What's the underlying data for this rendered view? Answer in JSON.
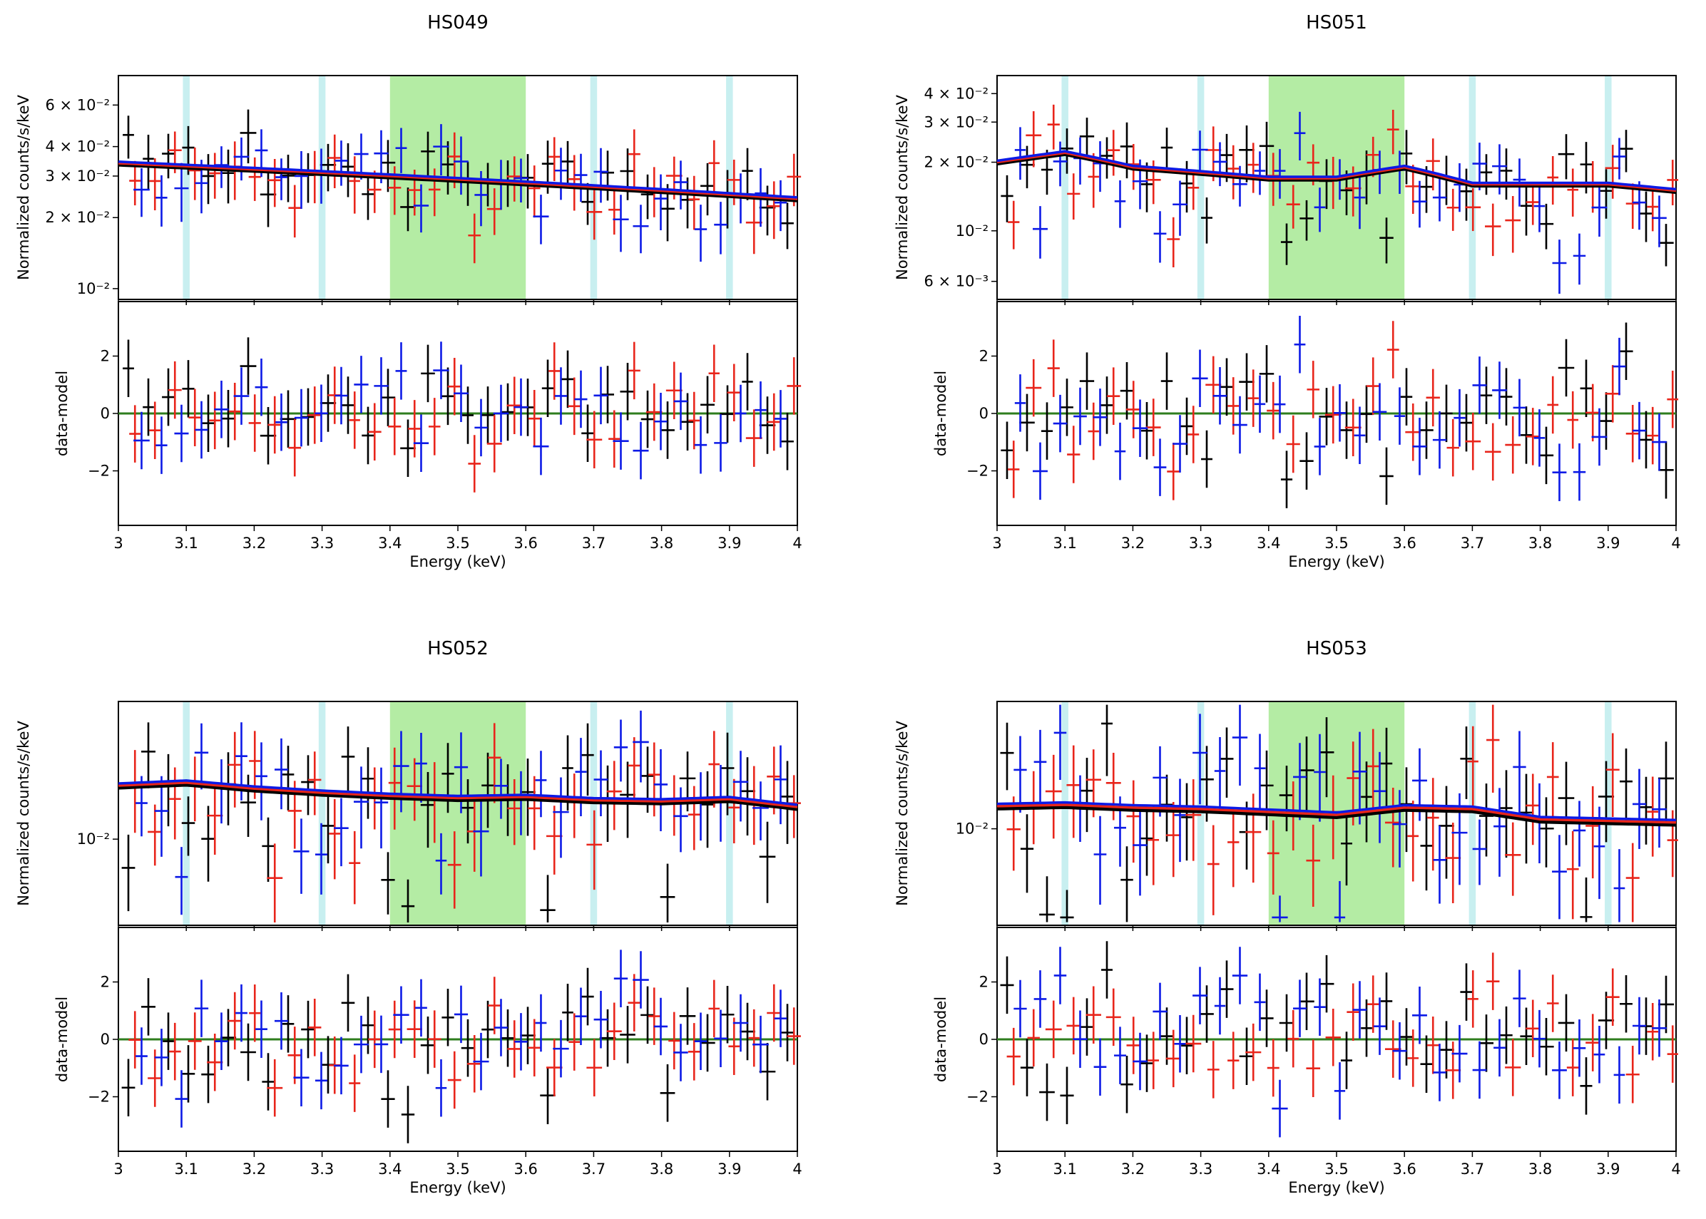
{
  "chart_data": [
    {
      "type": "scatter",
      "panel": "HS049",
      "title": "HS049",
      "xlabel": "Energy (keV)",
      "ylabel_top": "Normalized counts/s/keV",
      "ylabel_bottom": "data-model",
      "xlim": [
        3,
        4
      ],
      "xticks": [
        "3",
        "3.1",
        "3.2",
        "3.3",
        "3.4",
        "3.5",
        "3.6",
        "3.7",
        "3.8",
        "3.9",
        "4"
      ],
      "yscale_top": "log",
      "ylim_top": [
        0.009,
        0.08
      ],
      "yticks_top": [
        {
          "value": 0.01,
          "label": "10⁻²"
        },
        {
          "value": 0.02,
          "label": "2 × 10⁻²"
        },
        {
          "value": 0.03,
          "label": "3 × 10⁻²"
        },
        {
          "value": 0.04,
          "label": "4 × 10⁻²"
        },
        {
          "value": 0.06,
          "label": "6 × 10⁻²"
        }
      ],
      "ylim_bottom": [
        -3.9,
        3.9
      ],
      "yticks_bottom": [
        "-2",
        "0",
        "2"
      ],
      "shaded_bands": [
        {
          "x0": 3.095,
          "x1": 3.105,
          "color": "#c8eff0"
        },
        {
          "x0": 3.295,
          "x1": 3.305,
          "color": "#c8eff0"
        },
        {
          "x0": 3.695,
          "x1": 3.705,
          "color": "#c8eff0"
        },
        {
          "x0": 3.895,
          "x1": 3.905,
          "color": "#c8eff0"
        },
        {
          "x0": 3.4,
          "x1": 3.6,
          "color": "#b4eca4"
        }
      ],
      "model": {
        "x": [
          3.0,
          3.1,
          3.2,
          3.3,
          3.4,
          3.5,
          3.6,
          3.7,
          3.8,
          3.9,
          4.0
        ],
        "y": [
          0.034,
          0.033,
          0.032,
          0.031,
          0.03,
          0.029,
          0.028,
          0.027,
          0.026,
          0.025,
          0.024
        ]
      },
      "series": [
        {
          "name": "black",
          "color": "#000000",
          "amp": 1.1,
          "seed": 11
        },
        {
          "name": "red",
          "color": "#e8251b",
          "amp": 1.1,
          "seed": 12
        },
        {
          "name": "blue",
          "color": "#0c1ae6",
          "amp": 1.1,
          "seed": 13
        }
      ]
    },
    {
      "type": "scatter",
      "panel": "HS051",
      "title": "HS051",
      "xlabel": "Energy (keV)",
      "ylabel_top": "Normalized counts/s/keV",
      "ylabel_bottom": "data-model",
      "xlim": [
        3,
        4
      ],
      "xticks": [
        "3",
        "3.1",
        "3.2",
        "3.3",
        "3.4",
        "3.5",
        "3.6",
        "3.7",
        "3.8",
        "3.9",
        "4"
      ],
      "yscale_top": "log",
      "ylim_top": [
        0.005,
        0.048
      ],
      "yticks_top": [
        {
          "value": 0.006,
          "label": "6 × 10⁻³"
        },
        {
          "value": 0.01,
          "label": "10⁻²"
        },
        {
          "value": 0.02,
          "label": "2 × 10⁻²"
        },
        {
          "value": 0.03,
          "label": "3 × 10⁻²"
        },
        {
          "value": 0.04,
          "label": "4 × 10⁻²"
        }
      ],
      "ylim_bottom": [
        -3.9,
        3.9
      ],
      "yticks_bottom": [
        "-2",
        "0",
        "2"
      ],
      "shaded_bands": [
        {
          "x0": 3.095,
          "x1": 3.105,
          "color": "#c8eff0"
        },
        {
          "x0": 3.295,
          "x1": 3.305,
          "color": "#c8eff0"
        },
        {
          "x0": 3.695,
          "x1": 3.705,
          "color": "#c8eff0"
        },
        {
          "x0": 3.895,
          "x1": 3.905,
          "color": "#c8eff0"
        },
        {
          "x0": 3.4,
          "x1": 3.6,
          "color": "#b4eca4"
        }
      ],
      "model": {
        "x": [
          3.0,
          3.1,
          3.2,
          3.3,
          3.4,
          3.5,
          3.6,
          3.7,
          3.8,
          3.9,
          4.0
        ],
        "y": [
          0.02,
          0.022,
          0.019,
          0.018,
          0.017,
          0.017,
          0.019,
          0.016,
          0.016,
          0.016,
          0.015
        ]
      },
      "series": [
        {
          "name": "black",
          "color": "#000000",
          "amp": 1.4,
          "seed": 21
        },
        {
          "name": "red",
          "color": "#e8251b",
          "amp": 1.4,
          "seed": 22
        },
        {
          "name": "blue",
          "color": "#0c1ae6",
          "amp": 1.4,
          "seed": 23
        }
      ]
    },
    {
      "type": "scatter",
      "panel": "HS052",
      "title": "HS052",
      "xlabel": "Energy (keV)",
      "ylabel_top": "Normalized counts/s/keV",
      "ylabel_bottom": "data-model",
      "xlim": [
        3,
        4
      ],
      "xticks": [
        "3",
        "3.1",
        "3.2",
        "3.3",
        "3.4",
        "3.5",
        "3.6",
        "3.7",
        "3.8",
        "3.9",
        "4"
      ],
      "yscale_top": "log",
      "ylim_top": [
        0.0055,
        0.026
      ],
      "yticks_top": [
        {
          "value": 0.01,
          "label": "10⁻²"
        }
      ],
      "ylim_bottom": [
        -3.9,
        3.9
      ],
      "yticks_bottom": [
        "-2",
        "0",
        "2"
      ],
      "shaded_bands": [
        {
          "x0": 3.095,
          "x1": 3.105,
          "color": "#c8eff0"
        },
        {
          "x0": 3.295,
          "x1": 3.305,
          "color": "#c8eff0"
        },
        {
          "x0": 3.695,
          "x1": 3.705,
          "color": "#c8eff0"
        },
        {
          "x0": 3.895,
          "x1": 3.905,
          "color": "#c8eff0"
        },
        {
          "x0": 3.4,
          "x1": 3.6,
          "color": "#b4eca4"
        }
      ],
      "model": {
        "x": [
          3.0,
          3.1,
          3.2,
          3.3,
          3.4,
          3.5,
          3.6,
          3.7,
          3.8,
          3.9,
          4.0
        ],
        "y": [
          0.0145,
          0.0148,
          0.0142,
          0.0138,
          0.0135,
          0.0133,
          0.0134,
          0.0131,
          0.013,
          0.0132,
          0.0125
        ]
      },
      "series": [
        {
          "name": "black",
          "color": "#000000",
          "amp": 1.2,
          "seed": 31
        },
        {
          "name": "red",
          "color": "#e8251b",
          "amp": 1.2,
          "seed": 32
        },
        {
          "name": "blue",
          "color": "#0c1ae6",
          "amp": 1.2,
          "seed": 33
        }
      ]
    },
    {
      "type": "scatter",
      "panel": "HS053",
      "title": "HS053",
      "xlabel": "Energy (keV)",
      "ylabel_top": "Normalized counts/s/keV",
      "ylabel_bottom": "data-model",
      "xlim": [
        3,
        4
      ],
      "xticks": [
        "3",
        "3.1",
        "3.2",
        "3.3",
        "3.4",
        "3.5",
        "3.6",
        "3.7",
        "3.8",
        "3.9",
        "4"
      ],
      "yscale_top": "log",
      "ylim_top": [
        0.0055,
        0.022
      ],
      "yticks_top": [
        {
          "value": 0.01,
          "label": "10⁻²"
        }
      ],
      "ylim_bottom": [
        -3.9,
        3.9
      ],
      "yticks_bottom": [
        "-2",
        "0",
        "2"
      ],
      "shaded_bands": [
        {
          "x0": 3.095,
          "x1": 3.105,
          "color": "#c8eff0"
        },
        {
          "x0": 3.295,
          "x1": 3.305,
          "color": "#c8eff0"
        },
        {
          "x0": 3.695,
          "x1": 3.705,
          "color": "#c8eff0"
        },
        {
          "x0": 3.895,
          "x1": 3.905,
          "color": "#c8eff0"
        },
        {
          "x0": 3.4,
          "x1": 3.6,
          "color": "#b4eca4"
        }
      ],
      "model": {
        "x": [
          3.0,
          3.1,
          3.2,
          3.3,
          3.4,
          3.5,
          3.6,
          3.7,
          3.8,
          3.9,
          4.0
        ],
        "y": [
          0.0115,
          0.0116,
          0.0114,
          0.0113,
          0.0111,
          0.0109,
          0.0114,
          0.0113,
          0.0106,
          0.0105,
          0.0104
        ]
      },
      "series": [
        {
          "name": "black",
          "color": "#000000",
          "amp": 1.2,
          "seed": 41
        },
        {
          "name": "red",
          "color": "#e8251b",
          "amp": 1.2,
          "seed": 42
        },
        {
          "name": "blue",
          "color": "#0c1ae6",
          "amp": 1.2,
          "seed": 43
        }
      ]
    }
  ]
}
